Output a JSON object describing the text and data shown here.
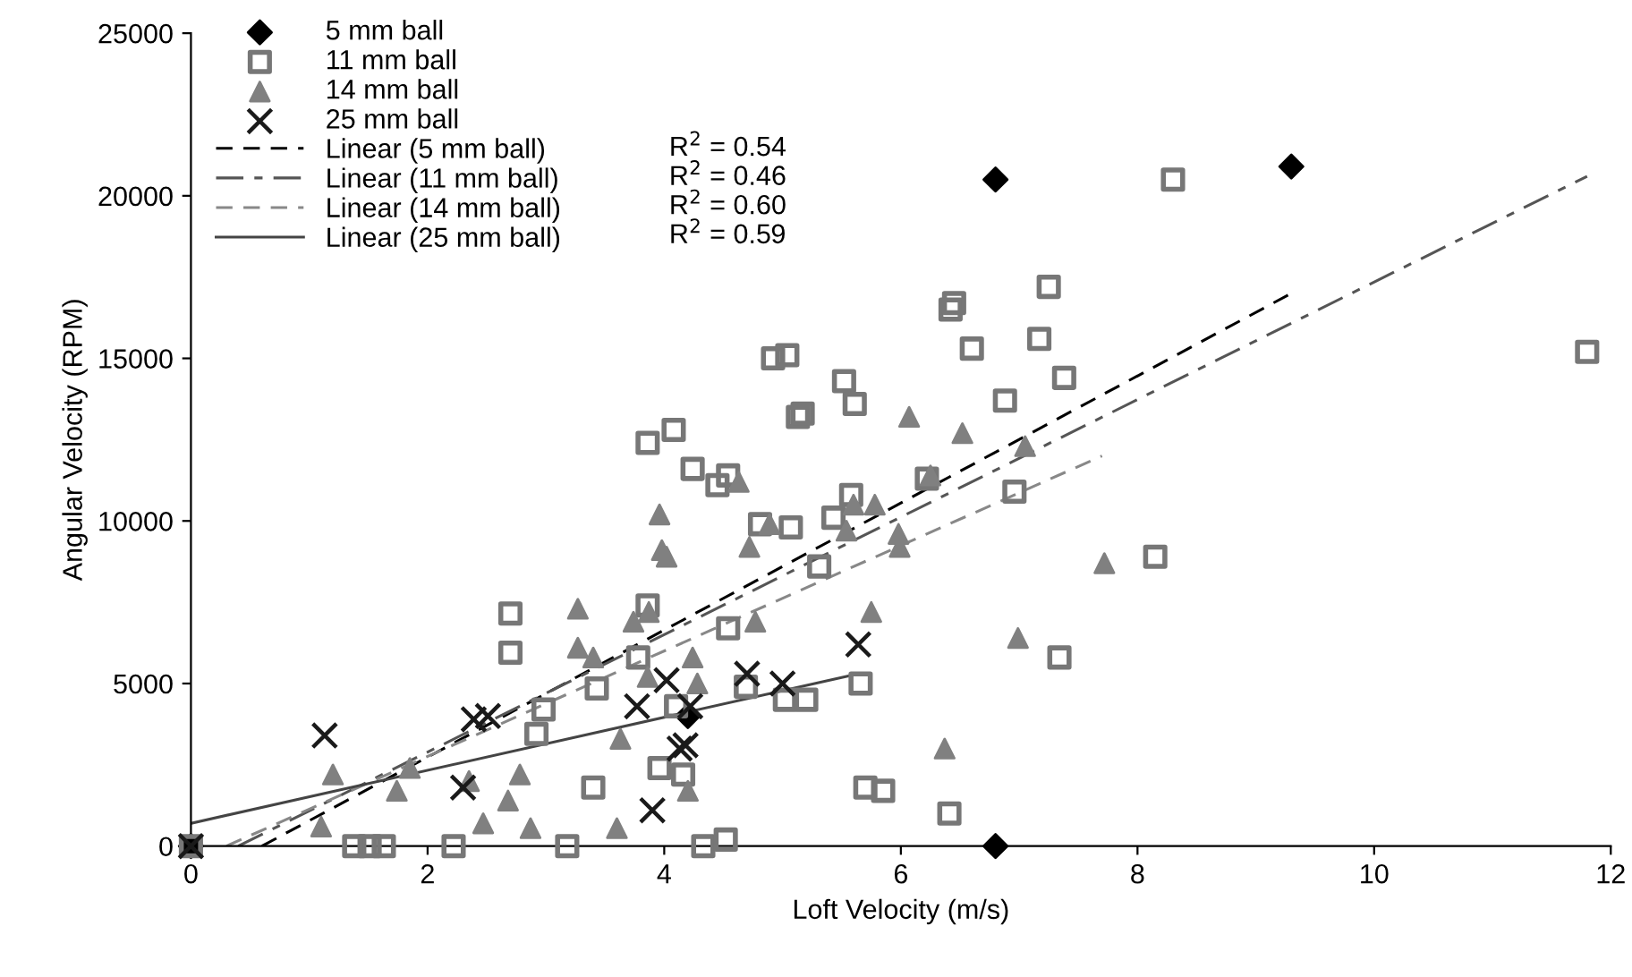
{
  "chart_data": {
    "type": "scatter",
    "xlabel": "Loft Velocity (m/s)",
    "ylabel": "Angular Velocity (RPM)",
    "xlim": [
      0,
      12
    ],
    "xticks": [
      0,
      2,
      4,
      6,
      8,
      10,
      12
    ],
    "ylim": [
      0,
      25000
    ],
    "yticks": [
      0,
      5000,
      10000,
      15000,
      20000,
      25000
    ],
    "grid": false,
    "legend": "top left",
    "annotations": [
      "R$^{2}$ = 0.54",
      "R$^{2}$ = 0.46",
      "R$^{2}$ = 0.60",
      "R$^{2}$ = 0.59"
    ],
    "series": [
      {
        "name": "5 mm ball",
        "marker": "diamond",
        "color": "#000000",
        "x": [
          0,
          4.2,
          6.8,
          9.3,
          6.8
        ],
        "values": [
          0,
          4000,
          20500,
          20900,
          0
        ]
      },
      {
        "name": "11 mm ball",
        "marker": "square",
        "color": "#777777",
        "x": [
          0,
          1.38,
          1.51,
          1.63,
          2.22,
          3.18,
          2.7,
          2.7,
          2.92,
          2.98,
          3.43,
          3.4,
          4.92,
          5.04,
          6.6,
          7.17,
          7.38,
          5.52,
          5.61,
          5.13,
          5.17,
          6.88,
          3.86,
          4.08,
          4.24,
          4.54,
          4.45,
          6.22,
          5.58,
          5.43,
          4.81,
          5.07,
          6.96,
          5.31,
          3.86,
          4.54,
          3.78,
          4.69,
          5.02,
          5.2,
          5.66,
          4.1,
          7.34,
          3.96,
          4.16,
          5.7,
          5.85,
          6.41,
          4.33,
          4.52,
          6.42,
          6.45,
          7.25,
          8.3,
          8.15,
          11.8
        ],
        "values": [
          0,
          0,
          0,
          0,
          0,
          0,
          7150,
          5950,
          3450,
          4200,
          4850,
          1800,
          15000,
          15100,
          15300,
          15600,
          14400,
          14300,
          13600,
          13200,
          13300,
          13700,
          12400,
          12800,
          11600,
          11400,
          11100,
          11300,
          10800,
          10100,
          9900,
          9800,
          10900,
          8600,
          7400,
          6700,
          5800,
          4900,
          4500,
          4500,
          5000,
          4300,
          5800,
          2400,
          2200,
          1800,
          1700,
          1000,
          0,
          200,
          16500,
          16700,
          17200,
          20500,
          8900,
          15200
        ]
      },
      {
        "name": "14 mm ball",
        "marker": "triangle",
        "color": "#808080",
        "x": [
          1.2,
          1.1,
          1.85,
          1.74,
          2.47,
          2.68,
          2.78,
          2.87,
          3.27,
          3.27,
          3.4,
          3.6,
          3.63,
          2.35,
          3.96,
          3.98,
          4.02,
          4.63,
          4.72,
          4.89,
          5.6,
          5.78,
          5.54,
          5.98,
          5.99,
          6.07,
          6.52,
          7.05,
          6.25,
          7.72,
          5.75,
          6.99,
          6.37,
          4.77,
          3.74,
          3.87,
          4.24,
          4.28,
          3.86,
          4.2
        ],
        "values": [
          2200,
          600,
          2400,
          1700,
          700,
          1400,
          2200,
          550,
          7300,
          6100,
          5800,
          550,
          3300,
          2000,
          10200,
          9100,
          8900,
          11200,
          9200,
          9900,
          10500,
          10500,
          9700,
          9600,
          9200,
          13200,
          12700,
          12300,
          11400,
          8700,
          7200,
          6400,
          3000,
          6900,
          6900,
          7200,
          5800,
          5000,
          5200,
          1700
        ]
      },
      {
        "name": "25 mm ball",
        "marker": "cross",
        "color": "#1a1a1a",
        "x": [
          0,
          1.13,
          2.39,
          2.51,
          2.3,
          4.02,
          3.77,
          4.22,
          4.7,
          5.0,
          5.64,
          4.13,
          4.18,
          3.9
        ],
        "values": [
          0,
          3400,
          3900,
          4000,
          1800,
          5100,
          4300,
          4300,
          5300,
          5000,
          6200,
          3000,
          3100,
          1100
        ]
      },
      {
        "name": "Linear (5 mm ball)",
        "type": "line",
        "line_style": "dashed",
        "color": "#000000",
        "x": [
          0.6,
          9.3
        ],
        "values": [
          0,
          17000
        ]
      },
      {
        "name": "Linear (11 mm ball)",
        "type": "line",
        "line_style": "dashdot",
        "color": "#555555",
        "x": [
          0.4,
          11.8
        ],
        "values": [
          0,
          20600
        ]
      },
      {
        "name": "Linear (14 mm ball)",
        "type": "line",
        "line_style": "dashed",
        "color": "#888888",
        "x": [
          0.3,
          7.7
        ],
        "values": [
          0,
          12000
        ]
      },
      {
        "name": "Linear (25 mm ball)",
        "type": "line",
        "line_style": "solid",
        "color": "#444444",
        "x": [
          0,
          5.64
        ],
        "values": [
          700,
          5300
        ]
      }
    ]
  }
}
